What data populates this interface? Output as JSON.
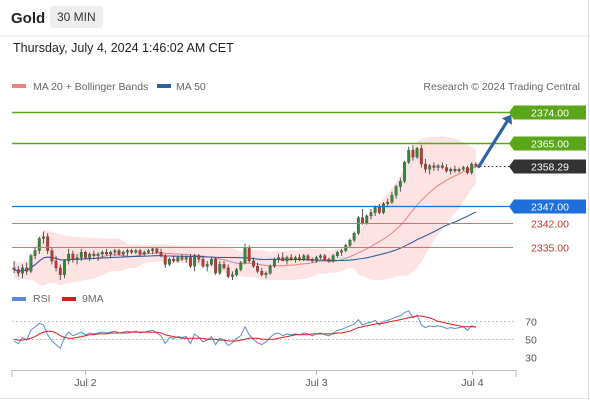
{
  "header": {
    "title": "Gold",
    "timeframe": "30 MIN",
    "datetime": "Thursday, July 4, 2024 1:46:02 AM CET",
    "credit": "Research © 2024 Trading Central"
  },
  "colors": {
    "up": "#2e8b3a",
    "down": "#c0392b",
    "bollinger_fill": "#fde3e3",
    "ma20": "#f08080",
    "ma50": "#2f5f9e",
    "resistance": "#5aa51a",
    "support": "#e06b6b",
    "pivot": "#1e6fd9",
    "arrow": "#2f62a6",
    "rsi": "#5b8ad6",
    "rsi_ma": "#e01a1a"
  },
  "chart_data": [
    {
      "type": "candlestick",
      "title": "Gold",
      "legend": [
        "MA 20 + Bollinger Bands",
        "MA 50"
      ],
      "x_labels": [
        "Jul 2",
        "Jul 3",
        "Jul 4"
      ],
      "ylim": [
        2325.5,
        2377.5
      ],
      "levels": [
        {
          "name": "resistance",
          "value": 2374.0,
          "label": "2374.00"
        },
        {
          "name": "resistance",
          "value": 2365.0,
          "label": "2365.00"
        },
        {
          "name": "last",
          "value": 2358.29,
          "label": "2358.29"
        },
        {
          "name": "pivot",
          "value": 2347.0,
          "label": "2347.00"
        },
        {
          "name": "support",
          "value": 2342.0,
          "label": "2342.00"
        },
        {
          "name": "support",
          "value": 2335.0,
          "label": "2335.00"
        }
      ],
      "forecast_arrow": {
        "from": 2358.3,
        "to": 2373.0
      },
      "candles": [
        [
          2329.0,
          2331.0,
          2327.5,
          2328.5
        ],
        [
          2328.5,
          2329.5,
          2326.5,
          2327.5
        ],
        [
          2327.5,
          2330.0,
          2326.0,
          2329.0
        ],
        [
          2329.0,
          2330.5,
          2327.0,
          2328.0
        ],
        [
          2328.0,
          2333.0,
          2327.5,
          2332.5
        ],
        [
          2332.5,
          2335.0,
          2331.5,
          2334.0
        ],
        [
          2334.0,
          2338.0,
          2333.0,
          2337.5
        ],
        [
          2337.5,
          2339.5,
          2336.0,
          2338.0
        ],
        [
          2338.0,
          2339.0,
          2333.0,
          2334.0
        ],
        [
          2334.0,
          2335.0,
          2330.0,
          2331.0
        ],
        [
          2331.0,
          2332.5,
          2328.0,
          2329.0
        ],
        [
          2329.0,
          2330.0,
          2325.5,
          2327.0
        ],
        [
          2327.0,
          2331.5,
          2326.0,
          2331.0
        ],
        [
          2331.0,
          2334.5,
          2330.0,
          2333.0
        ],
        [
          2333.0,
          2334.0,
          2330.5,
          2331.5
        ],
        [
          2331.5,
          2333.0,
          2330.0,
          2332.0
        ],
        [
          2332.0,
          2334.5,
          2331.0,
          2333.5
        ],
        [
          2333.5,
          2334.0,
          2331.5,
          2332.0
        ],
        [
          2332.0,
          2333.5,
          2331.0,
          2333.0
        ],
        [
          2333.0,
          2334.0,
          2331.5,
          2332.5
        ],
        [
          2332.5,
          2333.5,
          2331.0,
          2333.0
        ],
        [
          2333.0,
          2334.0,
          2332.0,
          2333.5
        ],
        [
          2333.5,
          2334.5,
          2332.5,
          2333.0
        ],
        [
          2333.0,
          2334.0,
          2332.0,
          2333.5
        ],
        [
          2333.5,
          2334.5,
          2332.5,
          2334.0
        ],
        [
          2334.0,
          2334.5,
          2332.5,
          2333.0
        ],
        [
          2333.0,
          2334.0,
          2332.0,
          2333.5
        ],
        [
          2333.5,
          2334.5,
          2332.5,
          2334.0
        ],
        [
          2334.0,
          2334.5,
          2333.0,
          2333.5
        ],
        [
          2333.5,
          2334.5,
          2333.0,
          2334.0
        ],
        [
          2334.0,
          2334.5,
          2332.5,
          2333.0
        ],
        [
          2333.0,
          2334.0,
          2332.5,
          2333.5
        ],
        [
          2333.5,
          2334.5,
          2333.0,
          2334.0
        ],
        [
          2334.0,
          2335.0,
          2333.0,
          2334.5
        ],
        [
          2334.5,
          2335.0,
          2333.0,
          2333.5
        ],
        [
          2333.5,
          2334.5,
          2332.0,
          2332.5
        ],
        [
          2332.5,
          2333.0,
          2329.0,
          2330.0
        ],
        [
          2330.0,
          2332.0,
          2329.5,
          2331.5
        ],
        [
          2331.5,
          2332.5,
          2330.5,
          2331.0
        ],
        [
          2331.0,
          2332.5,
          2330.5,
          2332.0
        ],
        [
          2332.0,
          2333.0,
          2331.0,
          2331.5
        ],
        [
          2331.5,
          2332.5,
          2330.5,
          2332.0
        ],
        [
          2332.0,
          2333.0,
          2329.0,
          2329.5
        ],
        [
          2329.5,
          2333.0,
          2328.0,
          2332.5
        ],
        [
          2332.5,
          2333.0,
          2330.5,
          2331.5
        ],
        [
          2331.5,
          2332.5,
          2329.0,
          2329.5
        ],
        [
          2329.5,
          2331.0,
          2328.0,
          2330.0
        ],
        [
          2330.0,
          2332.0,
          2329.5,
          2331.5
        ],
        [
          2331.5,
          2332.0,
          2327.0,
          2327.5
        ],
        [
          2327.5,
          2331.0,
          2327.0,
          2330.0
        ],
        [
          2330.0,
          2331.0,
          2328.5,
          2329.0
        ],
        [
          2329.0,
          2330.0,
          2326.0,
          2326.5
        ],
        [
          2326.5,
          2328.0,
          2325.5,
          2327.0
        ],
        [
          2327.0,
          2329.0,
          2326.5,
          2328.5
        ],
        [
          2328.5,
          2331.0,
          2328.0,
          2330.5
        ],
        [
          2330.5,
          2336.0,
          2330.0,
          2335.0
        ],
        [
          2335.0,
          2335.5,
          2330.5,
          2331.0
        ],
        [
          2331.0,
          2332.0,
          2329.0,
          2329.5
        ],
        [
          2329.5,
          2330.5,
          2327.5,
          2328.0
        ],
        [
          2328.0,
          2329.0,
          2326.5,
          2327.0
        ],
        [
          2327.0,
          2328.0,
          2326.0,
          2327.5
        ],
        [
          2327.5,
          2330.0,
          2327.0,
          2329.5
        ],
        [
          2329.5,
          2332.0,
          2329.0,
          2331.5
        ],
        [
          2331.5,
          2333.0,
          2330.5,
          2332.0
        ],
        [
          2332.0,
          2333.5,
          2331.5,
          2331.0
        ],
        [
          2331.0,
          2332.5,
          2330.0,
          2332.0
        ],
        [
          2332.0,
          2333.0,
          2331.0,
          2331.5
        ],
        [
          2331.5,
          2332.5,
          2330.5,
          2332.0
        ],
        [
          2332.0,
          2333.0,
          2331.0,
          2331.5
        ],
        [
          2331.5,
          2333.0,
          2331.0,
          2332.5
        ],
        [
          2332.5,
          2333.0,
          2331.0,
          2331.5
        ],
        [
          2331.5,
          2332.0,
          2330.5,
          2331.0
        ],
        [
          2331.0,
          2332.5,
          2330.5,
          2332.0
        ],
        [
          2332.0,
          2333.0,
          2331.5,
          2332.5
        ],
        [
          2332.5,
          2333.0,
          2331.0,
          2331.5
        ],
        [
          2331.5,
          2332.0,
          2330.5,
          2331.0
        ],
        [
          2331.0,
          2333.0,
          2330.5,
          2332.5
        ],
        [
          2332.5,
          2334.0,
          2332.0,
          2333.5
        ],
        [
          2333.5,
          2334.5,
          2332.5,
          2334.0
        ],
        [
          2334.0,
          2336.0,
          2333.5,
          2335.5
        ],
        [
          2335.5,
          2337.5,
          2335.0,
          2337.0
        ],
        [
          2337.0,
          2339.5,
          2336.5,
          2339.0
        ],
        [
          2339.0,
          2344.0,
          2338.5,
          2343.5
        ],
        [
          2343.5,
          2346.0,
          2341.5,
          2342.0
        ],
        [
          2342.0,
          2344.5,
          2341.5,
          2344.0
        ],
        [
          2344.0,
          2346.0,
          2343.0,
          2345.0
        ],
        [
          2345.0,
          2347.0,
          2344.0,
          2346.5
        ],
        [
          2346.5,
          2347.5,
          2344.5,
          2345.0
        ],
        [
          2345.0,
          2348.0,
          2344.5,
          2347.5
        ],
        [
          2347.5,
          2349.0,
          2346.5,
          2348.0
        ],
        [
          2348.0,
          2351.0,
          2347.5,
          2350.0
        ],
        [
          2350.0,
          2353.0,
          2349.0,
          2352.5
        ],
        [
          2352.5,
          2355.0,
          2351.0,
          2354.0
        ],
        [
          2354.0,
          2360.0,
          2353.5,
          2359.5
        ],
        [
          2359.5,
          2364.0,
          2359.0,
          2363.0
        ],
        [
          2363.0,
          2364.5,
          2360.0,
          2361.0
        ],
        [
          2361.0,
          2364.0,
          2360.5,
          2363.5
        ],
        [
          2363.5,
          2364.5,
          2358.0,
          2359.0
        ],
        [
          2359.0,
          2360.5,
          2356.5,
          2357.5
        ],
        [
          2357.5,
          2359.0,
          2356.0,
          2358.5
        ],
        [
          2358.5,
          2359.5,
          2357.0,
          2358.0
        ],
        [
          2358.0,
          2359.0,
          2357.0,
          2358.5
        ],
        [
          2358.5,
          2359.5,
          2357.5,
          2358.0
        ],
        [
          2358.0,
          2359.0,
          2356.5,
          2357.0
        ],
        [
          2357.0,
          2358.0,
          2356.0,
          2357.5
        ],
        [
          2357.5,
          2358.5,
          2356.5,
          2357.0
        ],
        [
          2357.0,
          2358.0,
          2356.5,
          2357.5
        ],
        [
          2357.5,
          2358.5,
          2357.0,
          2358.0
        ],
        [
          2358.0,
          2358.5,
          2356.0,
          2356.5
        ],
        [
          2356.5,
          2359.5,
          2356.0,
          2359.0
        ],
        [
          2359.0,
          2359.5,
          2358.0,
          2358.3
        ]
      ]
    },
    {
      "type": "line",
      "title": "RSI",
      "legend": [
        "RSI",
        "9MA"
      ],
      "ylim": [
        20,
        85
      ],
      "ytick_labels": [
        "70",
        "50",
        "30"
      ],
      "y_ticks": [
        70,
        50,
        30
      ],
      "rsi": [
        48,
        45,
        52,
        49,
        60,
        64,
        68,
        66,
        55,
        48,
        44,
        40,
        52,
        58,
        54,
        56,
        58,
        55,
        57,
        56,
        57,
        58,
        57,
        58,
        59,
        57,
        58,
        59,
        58,
        59,
        57,
        58,
        59,
        60,
        57,
        54,
        45,
        52,
        51,
        53,
        52,
        53,
        45,
        56,
        52,
        47,
        49,
        53,
        44,
        51,
        49,
        43,
        46,
        51,
        54,
        64,
        55,
        50,
        46,
        44,
        47,
        52,
        56,
        57,
        54,
        56,
        55,
        56,
        55,
        57,
        56,
        54,
        56,
        57,
        55,
        54,
        57,
        60,
        61,
        63,
        65,
        67,
        72,
        66,
        68,
        69,
        71,
        66,
        70,
        71,
        73,
        75,
        76,
        80,
        82,
        74,
        77,
        66,
        63,
        65,
        64,
        65,
        64,
        62,
        63,
        62,
        63,
        64,
        60,
        65,
        63
      ],
      "rsi_ma": [
        50,
        49,
        49,
        50,
        51,
        53,
        56,
        58,
        59,
        59,
        57,
        54,
        52,
        51,
        51,
        52,
        53,
        54,
        55,
        55,
        56,
        56,
        56,
        57,
        57,
        57,
        57,
        57,
        58,
        58,
        58,
        58,
        58,
        58,
        58,
        57,
        55,
        54,
        53,
        52,
        51,
        51,
        51,
        51,
        51,
        51,
        50,
        50,
        50,
        49,
        49,
        48,
        48,
        48,
        49,
        50,
        51,
        51,
        51,
        50,
        50,
        50,
        50,
        51,
        52,
        53,
        54,
        55,
        55,
        55,
        55,
        56,
        56,
        56,
        56,
        56,
        56,
        57,
        57,
        58,
        59,
        61,
        63,
        64,
        65,
        66,
        67,
        68,
        68,
        69,
        70,
        71,
        72,
        73,
        74,
        75,
        76,
        76,
        75,
        74,
        72,
        70,
        69,
        68,
        67,
        66,
        65,
        64,
        64,
        64,
        64
      ]
    }
  ]
}
